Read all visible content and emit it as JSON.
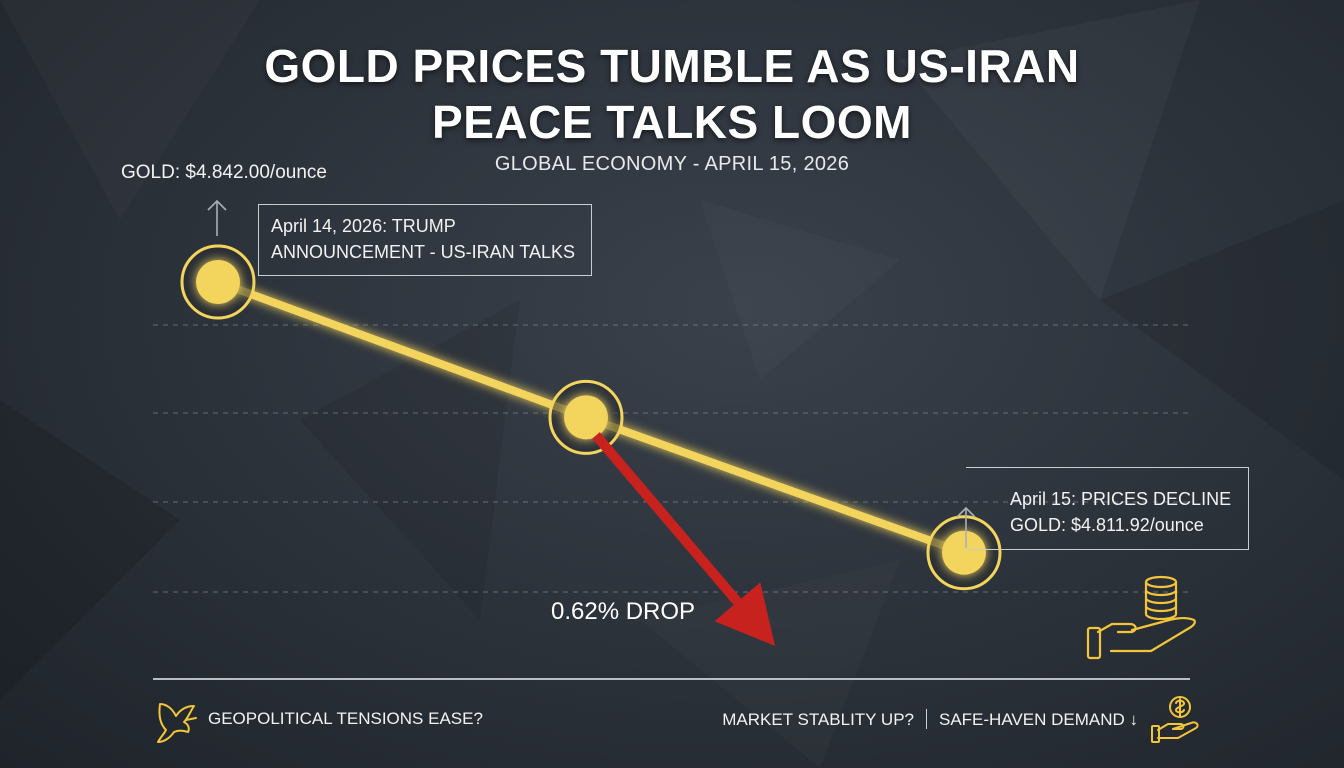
{
  "header": {
    "title_line1": "GOLD PRICES TUMBLE AS US-IRAN",
    "title_line2": "PEACE TALKS LOOM",
    "subtitle": "GLOBAL ECONOMY - APRIL 15, 2026"
  },
  "annotations": {
    "start_price": "GOLD: $4.842.00/ounce",
    "event_line1": "April 14, 2026: TRUMP",
    "event_line2": "ANNOUNCEMENT - US-IRAN TALKS",
    "end_line1": "April 15: PRICES DECLINE",
    "end_line2": "GOLD: $4.811.92/ounce",
    "drop": "0.62% DROP"
  },
  "footer": {
    "left": "GEOPOLITICAL TENSIONS EASE?",
    "right_a": "MARKET STABLITY UP?",
    "right_b": "SAFE-HAVEN DEMAND ↓"
  },
  "colors": {
    "gold": "#f3d45c",
    "drop_arrow": "#c8221f",
    "background": "#2b3139"
  },
  "icons": [
    "dove-icon",
    "coins-in-hand-icon",
    "dollar-in-hand-icon",
    "up-arrow-icon"
  ],
  "chart_data": {
    "type": "line",
    "categories": [
      "April 14, 2026",
      "",
      "April 15"
    ],
    "series": [
      {
        "values": [
          4842.0,
          4826.96,
          4811.92
        ]
      }
    ],
    "ylim": [
      4800,
      4850
    ],
    "grid": true,
    "drop_percent": 0.62
  }
}
